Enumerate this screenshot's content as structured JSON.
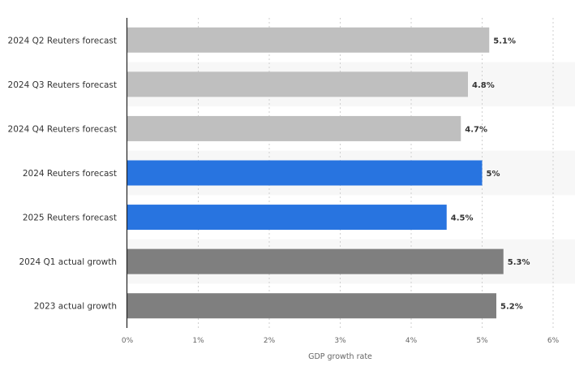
{
  "chart_data": {
    "type": "bar",
    "orientation": "horizontal",
    "title": "",
    "xlabel": "GDP growth rate",
    "ylabel": "",
    "xlim": [
      0,
      6
    ],
    "x_ticks": [
      0,
      1,
      2,
      3,
      4,
      5,
      6
    ],
    "x_tick_labels": [
      "0%",
      "1%",
      "2%",
      "3%",
      "4%",
      "5%",
      "6%"
    ],
    "grid": "vertical dashed",
    "legend": "none",
    "categories": [
      "2024 Q2 Reuters forecast",
      "2024 Q3 Reuters forecast",
      "2024 Q4 Reuters forecast",
      "2024 Reuters forecast",
      "2025 Reuters forecast",
      "2024 Q1 actual growth",
      "2023 actual growth"
    ],
    "values": [
      5.1,
      4.8,
      4.7,
      5,
      4.5,
      5.3,
      5.2
    ],
    "value_labels": [
      "5.1%",
      "4.8%",
      "4.7%",
      "5%",
      "4.5%",
      "5.3%",
      "5.2%"
    ],
    "colors": [
      "#bfbfbf",
      "#bfbfbf",
      "#bfbfbf",
      "#2874e0",
      "#2874e0",
      "#7f7f7f",
      "#7f7f7f"
    ],
    "band_color": "#f7f7f7",
    "grid_color": "#cfcfcf",
    "axis_color": "#222222"
  }
}
